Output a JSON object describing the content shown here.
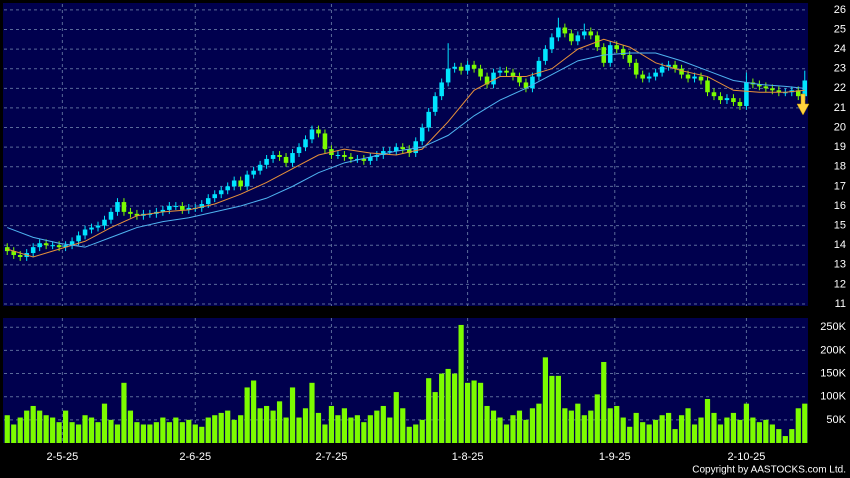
{
  "chart_data": [
    {
      "type": "candlestick",
      "xlim": [
        -0.5,
        123.5
      ],
      "ylim": [
        10.9,
        26.3
      ],
      "yticks": [
        11,
        12,
        13,
        14,
        15,
        16,
        17,
        18,
        19,
        20,
        21,
        22,
        23,
        24,
        25,
        26
      ],
      "grid": true,
      "up_color": "#00e5ff",
      "down_color": "#7cfc00",
      "open": [
        13.9,
        13.7,
        13.5,
        13.4,
        13.6,
        13.9,
        14.1,
        14.0,
        14.0,
        13.9,
        14.0,
        14.2,
        14.5,
        14.8,
        14.9,
        15.0,
        15.3,
        15.7,
        16.2,
        15.7,
        15.6,
        15.5,
        15.6,
        15.6,
        15.7,
        15.8,
        16.0,
        16.0,
        15.8,
        15.9,
        15.9,
        16.1,
        16.4,
        16.6,
        16.8,
        17.0,
        17.3,
        17.0,
        17.6,
        17.8,
        18.1,
        18.4,
        18.6,
        18.5,
        18.2,
        18.7,
        19.0,
        19.4,
        19.9,
        19.7,
        18.9,
        18.6,
        18.6,
        18.5,
        18.4,
        18.4,
        18.3,
        18.5,
        18.6,
        18.8,
        18.8,
        19.0,
        18.9,
        18.7,
        19.3,
        20.0,
        20.8,
        21.6,
        22.3,
        23.0,
        23.1,
        22.9,
        23.2,
        23.0,
        22.6,
        22.2,
        22.8,
        22.9,
        22.8,
        22.6,
        22.3,
        22.0,
        22.6,
        23.4,
        24.0,
        24.6,
        25.1,
        24.8,
        24.4,
        24.7,
        24.9,
        24.7,
        24.1,
        23.3,
        24.2,
        24.0,
        23.7,
        23.3,
        22.7,
        22.5,
        22.6,
        22.8,
        23.1,
        23.2,
        23.0,
        22.7,
        22.5,
        22.6,
        22.4,
        21.8,
        21.6,
        21.4,
        21.5,
        21.3,
        21.1,
        22.3,
        22.2,
        22.1,
        22.0,
        21.9,
        21.8,
        21.8,
        21.9,
        21.6
      ],
      "high": [
        14.1,
        13.9,
        13.7,
        13.8,
        14.1,
        14.3,
        14.3,
        14.2,
        14.2,
        14.2,
        14.4,
        14.7,
        15.0,
        15.1,
        15.2,
        15.5,
        15.9,
        16.4,
        16.4,
        15.9,
        15.8,
        15.8,
        15.8,
        15.9,
        16.0,
        16.2,
        16.2,
        16.2,
        16.1,
        16.1,
        16.3,
        16.6,
        16.8,
        17.0,
        17.2,
        17.5,
        17.5,
        17.8,
        18.0,
        18.3,
        18.6,
        18.8,
        18.8,
        18.7,
        18.9,
        19.2,
        19.6,
        20.1,
        20.1,
        19.9,
        19.1,
        18.8,
        18.8,
        18.7,
        18.6,
        18.6,
        18.7,
        18.8,
        19.0,
        19.0,
        19.2,
        19.2,
        19.1,
        19.5,
        20.2,
        21.0,
        21.8,
        22.5,
        24.3,
        23.3,
        23.3,
        23.4,
        23.4,
        23.2,
        22.8,
        23.0,
        23.1,
        23.1,
        23.0,
        22.8,
        22.5,
        22.8,
        23.6,
        24.2,
        24.8,
        25.6,
        25.3,
        25.0,
        24.9,
        25.3,
        25.1,
        24.9,
        24.3,
        24.4,
        24.4,
        24.2,
        23.9,
        23.5,
        22.9,
        22.8,
        23.0,
        23.3,
        23.4,
        23.4,
        23.2,
        22.9,
        22.8,
        22.8,
        22.6,
        22.0,
        21.8,
        21.7,
        21.7,
        21.5,
        22.8,
        22.5,
        22.4,
        22.3,
        22.2,
        22.1,
        22.0,
        22.1,
        22.1,
        22.9
      ],
      "low": [
        13.5,
        13.3,
        13.2,
        13.2,
        13.4,
        13.7,
        13.8,
        13.8,
        13.7,
        13.7,
        13.8,
        14.0,
        14.3,
        14.6,
        14.7,
        14.8,
        15.1,
        15.5,
        15.5,
        15.4,
        15.3,
        15.3,
        15.4,
        15.4,
        15.5,
        15.6,
        15.8,
        15.6,
        15.6,
        15.7,
        15.7,
        15.9,
        16.2,
        16.4,
        16.6,
        16.8,
        16.8,
        16.8,
        17.4,
        17.6,
        17.9,
        18.2,
        18.3,
        18.0,
        18.0,
        18.5,
        18.8,
        19.2,
        19.5,
        18.7,
        18.4,
        18.4,
        18.3,
        18.2,
        18.2,
        18.1,
        18.1,
        18.3,
        18.4,
        18.6,
        18.6,
        18.7,
        18.5,
        18.5,
        19.1,
        19.8,
        20.6,
        21.4,
        22.1,
        22.8,
        22.7,
        22.7,
        22.8,
        22.4,
        22.0,
        22.0,
        22.6,
        22.6,
        22.4,
        22.1,
        21.8,
        21.8,
        22.4,
        23.2,
        23.8,
        24.4,
        24.6,
        24.2,
        24.2,
        24.5,
        24.5,
        23.9,
        23.1,
        23.1,
        23.8,
        23.5,
        23.1,
        22.5,
        22.3,
        22.3,
        22.4,
        22.6,
        22.9,
        22.8,
        22.5,
        22.3,
        22.3,
        22.2,
        21.6,
        21.4,
        21.2,
        21.2,
        21.1,
        20.9,
        20.9,
        22.0,
        21.9,
        21.8,
        21.7,
        21.6,
        21.6,
        21.6,
        21.4,
        21.4
      ],
      "close": [
        13.7,
        13.5,
        13.4,
        13.6,
        13.9,
        14.1,
        14.0,
        14.0,
        13.9,
        14.0,
        14.2,
        14.5,
        14.8,
        14.9,
        15.0,
        15.3,
        15.7,
        16.2,
        15.7,
        15.6,
        15.5,
        15.6,
        15.6,
        15.7,
        15.8,
        16.0,
        16.0,
        15.8,
        15.9,
        15.9,
        16.1,
        16.4,
        16.6,
        16.8,
        17.0,
        17.3,
        17.0,
        17.6,
        17.8,
        18.1,
        18.4,
        18.6,
        18.5,
        18.2,
        18.7,
        19.0,
        19.4,
        19.9,
        19.7,
        18.9,
        18.6,
        18.6,
        18.5,
        18.4,
        18.4,
        18.3,
        18.5,
        18.6,
        18.8,
        18.8,
        19.0,
        18.9,
        18.7,
        19.3,
        20.0,
        20.8,
        21.6,
        22.3,
        23.0,
        23.1,
        22.9,
        23.2,
        23.0,
        22.6,
        22.2,
        22.8,
        22.9,
        22.8,
        22.6,
        22.3,
        22.0,
        22.6,
        23.4,
        24.0,
        24.6,
        25.1,
        24.8,
        24.4,
        24.7,
        24.9,
        24.7,
        24.1,
        23.3,
        24.2,
        24.0,
        23.7,
        23.3,
        22.7,
        22.5,
        22.6,
        22.8,
        23.1,
        23.2,
        23.0,
        22.7,
        22.5,
        22.6,
        22.4,
        21.8,
        21.6,
        21.4,
        21.5,
        21.3,
        21.1,
        22.3,
        22.2,
        22.1,
        22.0,
        21.9,
        21.8,
        21.8,
        21.9,
        21.6,
        22.4
      ],
      "series": [
        {
          "color": "#e8913a",
          "x": [
            0,
            4,
            8,
            12,
            16,
            20,
            24,
            28,
            32,
            36,
            40,
            44,
            48,
            52,
            56,
            60,
            64,
            68,
            72,
            76,
            80,
            84,
            88,
            92,
            96,
            100,
            104,
            108,
            112,
            116,
            120,
            123
          ],
          "values": [
            13.8,
            13.4,
            13.8,
            14.2,
            14.9,
            15.5,
            15.7,
            15.8,
            16.1,
            16.6,
            17.2,
            17.9,
            18.6,
            18.9,
            18.7,
            18.6,
            18.9,
            20.3,
            21.9,
            22.6,
            22.6,
            23.0,
            24.0,
            24.5,
            24.1,
            23.3,
            22.9,
            22.6,
            21.9,
            21.8,
            21.8,
            21.9
          ]
        },
        {
          "color": "#4fb3f0",
          "x": [
            0,
            4,
            8,
            12,
            16,
            20,
            24,
            28,
            32,
            36,
            40,
            44,
            48,
            52,
            56,
            60,
            64,
            68,
            72,
            76,
            80,
            84,
            88,
            92,
            96,
            100,
            104,
            108,
            112,
            116,
            120,
            123
          ],
          "values": [
            14.9,
            14.4,
            14.1,
            13.9,
            14.4,
            14.9,
            15.2,
            15.4,
            15.7,
            16.0,
            16.4,
            17.0,
            17.7,
            18.2,
            18.5,
            18.8,
            19.0,
            19.6,
            20.6,
            21.4,
            22.0,
            22.7,
            23.4,
            23.7,
            23.8,
            23.8,
            23.4,
            22.9,
            22.4,
            22.2,
            22.1,
            22.0
          ]
        }
      ]
    },
    {
      "type": "bar",
      "color": "#7cfc00",
      "xlim": [
        -0.5,
        123.5
      ],
      "ylim": [
        0,
        270000
      ],
      "yticks": [
        {
          "value": 50000,
          "label": "50K"
        },
        {
          "value": 100000,
          "label": "100K"
        },
        {
          "value": 150000,
          "label": "150K"
        },
        {
          "value": 200000,
          "label": "200K"
        },
        {
          "value": 250000,
          "label": "250K"
        }
      ],
      "xticks": [
        {
          "value": 8.5,
          "label": "2-5-25"
        },
        {
          "value": 29,
          "label": "2-6-25"
        },
        {
          "value": 50,
          "label": "2-7-25"
        },
        {
          "value": 71,
          "label": "1-8-25"
        },
        {
          "value": 93.7,
          "label": "1-9-25"
        },
        {
          "value": 114,
          "label": "2-10-25"
        }
      ],
      "grid": true,
      "values": [
        60000,
        40000,
        55000,
        70000,
        80000,
        70000,
        60000,
        55000,
        45000,
        70000,
        45000,
        40000,
        60000,
        55000,
        45000,
        85000,
        50000,
        40000,
        130000,
        70000,
        45000,
        40000,
        40000,
        45000,
        55000,
        45000,
        55000,
        45000,
        50000,
        40000,
        35000,
        55000,
        60000,
        65000,
        70000,
        50000,
        60000,
        120000,
        135000,
        75000,
        80000,
        70000,
        90000,
        55000,
        120000,
        55000,
        75000,
        130000,
        65000,
        40000,
        80000,
        60000,
        75000,
        55000,
        60000,
        45000,
        60000,
        70000,
        80000,
        55000,
        110000,
        75000,
        35000,
        40000,
        50000,
        140000,
        110000,
        150000,
        160000,
        150000,
        255000,
        130000,
        135000,
        130000,
        80000,
        70000,
        55000,
        40000,
        60000,
        70000,
        50000,
        75000,
        85000,
        185000,
        145000,
        145000,
        75000,
        70000,
        85000,
        60000,
        70000,
        105000,
        175000,
        75000,
        80000,
        55000,
        35000,
        65000,
        45000,
        40000,
        50000,
        60000,
        65000,
        30000,
        60000,
        75000,
        40000,
        55000,
        95000,
        65000,
        40000,
        55000,
        65000,
        50000,
        85000,
        55000,
        45000,
        50000,
        40000,
        30000,
        15000,
        30000,
        75000,
        85000
      ]
    }
  ],
  "footer": "Copyright by AASTOCKS.com Ltd."
}
